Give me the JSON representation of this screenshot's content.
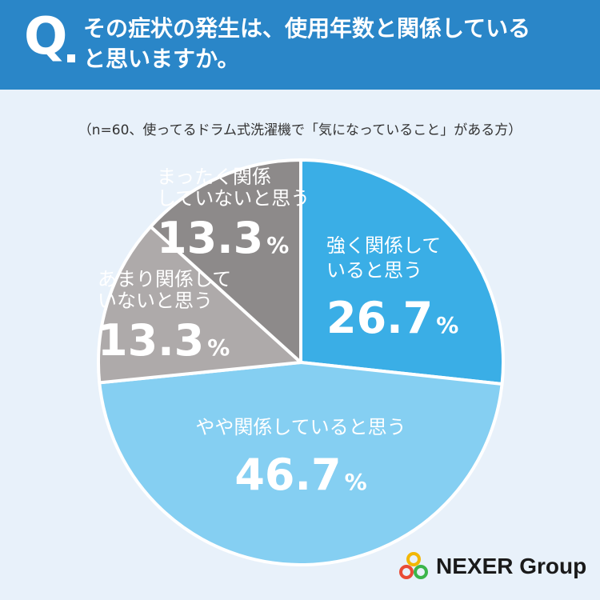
{
  "header": {
    "q_mark": "Q",
    "question_line_1": "その症状の発生は、使用年数と関係している",
    "question_line_2": "と思いますか。"
  },
  "subtitle": "（n=60、使ってるドラム式洗濯機で「気になっていること」がある方）",
  "chart_data": {
    "type": "pie",
    "unit": "%",
    "slices": [
      {
        "label_lines": [
          "強く関係して",
          "いると思う"
        ],
        "value": 26.7,
        "value_text": "26.7",
        "color": "#3aaee6"
      },
      {
        "label_lines": [
          "やや関係していると思う"
        ],
        "value": 46.7,
        "value_text": "46.7",
        "color": "#85cff2"
      },
      {
        "label_lines": [
          "あまり関係して",
          "いないと思う"
        ],
        "value": 13.3,
        "value_text": "13.3",
        "color": "#aeaaaa"
      },
      {
        "label_lines": [
          "まったく関係",
          "していないと思う"
        ],
        "value": 13.3,
        "value_text": "13.3",
        "color": "#8d8a8a"
      }
    ]
  },
  "logo": {
    "text": "NEXER Group"
  }
}
